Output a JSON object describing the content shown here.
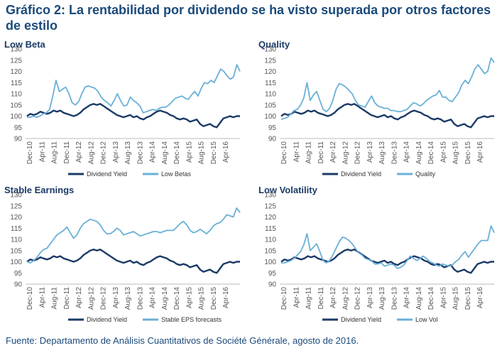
{
  "title": "Gráfico 2: La rentabilidad por dividendo se ha visto superada por otros factores de estilo",
  "footer": "Fuente: Departamento de Análisis Cuantitativos de Société Générale, agosto de 2016.",
  "colors": {
    "dividend": "#1b3a66",
    "factor": "#6ab0d8"
  },
  "chart_data": [
    {
      "type": "line",
      "title": "Low Beta",
      "ylim": [
        90,
        130
      ],
      "yticks": [
        90,
        95,
        100,
        105,
        110,
        115,
        120,
        125,
        130
      ],
      "xticks": [
        "Dec-10",
        "Apr-11",
        "Aug-11",
        "Dec-11",
        "Apr-12",
        "Aug-12",
        "Dec-12",
        "Apr-13",
        "Aug-13",
        "Dec-13",
        "Apr-14",
        "Aug-14",
        "Dec-14",
        "Apr-15",
        "Aug-15",
        "Dec-15",
        "Apr-16"
      ],
      "series": [
        {
          "name": "Dividend Yield",
          "values": [
            100,
            101,
            100.5,
            101,
            102,
            101.5,
            101,
            101.5,
            102.5,
            102,
            102.5,
            101.5,
            101,
            100.5,
            100,
            100.5,
            101.5,
            103,
            104,
            105,
            105.5,
            105,
            105.5,
            104.5,
            103.5,
            102.5,
            101.5,
            100.5,
            100,
            99.5,
            100,
            100.5,
            99.5,
            100,
            99,
            98.5,
            99.5,
            100,
            101,
            102,
            102.5,
            102,
            101.5,
            100.5,
            100,
            99,
            98.5,
            99,
            98.5,
            97.5,
            98,
            98.5,
            96.5,
            95.5,
            96,
            96.5,
            95.5,
            95,
            97,
            99,
            99.5,
            100,
            99.5,
            100,
            100
          ]
        },
        {
          "name": "Low Betas",
          "values": [
            99.5,
            99.5,
            100,
            99.5,
            100,
            101,
            101.5,
            103,
            109,
            116,
            111,
            112,
            113,
            110,
            106,
            105,
            106.5,
            110,
            113,
            113.5,
            113,
            112.5,
            111,
            108.5,
            107,
            106,
            104.5,
            107,
            110,
            107,
            104.5,
            105,
            108.5,
            107,
            106,
            104.5,
            101.5,
            102,
            102.5,
            103,
            102.5,
            103.5,
            104,
            104,
            105,
            106.5,
            108,
            108.5,
            109,
            108,
            107.5,
            109.5,
            111,
            109,
            112.5,
            115,
            114.5,
            116,
            115,
            118,
            121,
            120,
            118,
            116.5,
            117.5,
            123,
            120
          ]
        }
      ]
    },
    {
      "type": "line",
      "title": "Quality",
      "ylim": [
        90,
        130
      ],
      "yticks": [
        90,
        95,
        100,
        105,
        110,
        115,
        120,
        125,
        130
      ],
      "xticks": [
        "Dec-10",
        "Apr-11",
        "Aug-11",
        "Dec-11",
        "Apr-12",
        "Aug-12",
        "Dec-12",
        "Apr-13",
        "Aug-13",
        "Dec-13",
        "Apr-14",
        "Aug-14",
        "Dec-14",
        "Apr-15",
        "Aug-15",
        "Dec-15",
        "Apr-16"
      ],
      "series": [
        {
          "name": "Dividend Yield",
          "values": [
            100,
            101,
            100.5,
            101,
            102,
            101.5,
            101,
            101.5,
            102.5,
            102,
            102.5,
            101.5,
            101,
            100.5,
            100,
            100.5,
            101.5,
            103,
            104,
            105,
            105.5,
            105,
            105.5,
            104.5,
            103.5,
            102.5,
            101.5,
            100.5,
            100,
            99.5,
            100,
            100.5,
            99.5,
            100,
            99,
            98.5,
            99.5,
            100,
            101,
            102,
            102.5,
            102,
            101.5,
            100.5,
            100,
            99,
            98.5,
            99,
            98.5,
            97.5,
            98,
            98.5,
            96.5,
            95.5,
            96,
            96.5,
            95.5,
            95,
            97,
            99,
            99.5,
            100,
            99.5,
            100,
            100
          ]
        },
        {
          "name": "Quality",
          "values": [
            98.5,
            99,
            99.5,
            101,
            102.5,
            103,
            105,
            108,
            115,
            107,
            109.5,
            111,
            107,
            103,
            102,
            103.5,
            107,
            112,
            114.5,
            114,
            113,
            111.5,
            110,
            107,
            105,
            104.5,
            104,
            106.5,
            109,
            106,
            104.5,
            104,
            103.5,
            103.5,
            102.5,
            102.5,
            102,
            102,
            102.5,
            103,
            104.5,
            106,
            105.5,
            104.5,
            105.5,
            107,
            108,
            109,
            109.5,
            111.5,
            108.5,
            108.5,
            107,
            106.5,
            108.5,
            110.5,
            114,
            116,
            114.5,
            117.5,
            121,
            123,
            121,
            119,
            120,
            126,
            124
          ]
        }
      ]
    },
    {
      "type": "line",
      "title": "Stable Earnings",
      "ylim": [
        90,
        130
      ],
      "yticks": [
        90,
        95,
        100,
        105,
        110,
        115,
        120,
        125,
        130
      ],
      "xticks": [
        "Dec-10",
        "Apr-11",
        "Aug-11",
        "Dec-11",
        "Apr-12",
        "Aug-12",
        "Dec-12",
        "Apr-13",
        "Aug-13",
        "Dec-13",
        "Apr-14",
        "Aug-14",
        "Dec-14",
        "Apr-15",
        "Aug-15",
        "Dec-15",
        "Apr-16"
      ],
      "series": [
        {
          "name": "Dividend Yield",
          "values": [
            100,
            101,
            100.5,
            101,
            102,
            101.5,
            101,
            101.5,
            102.5,
            102,
            102.5,
            101.5,
            101,
            100.5,
            100,
            100.5,
            101.5,
            103,
            104,
            105,
            105.5,
            105,
            105.5,
            104.5,
            103.5,
            102.5,
            101.5,
            100.5,
            100,
            99.5,
            100,
            100.5,
            99.5,
            100,
            99,
            98.5,
            99.5,
            100,
            101,
            102,
            102.5,
            102,
            101.5,
            100.5,
            100,
            99,
            98.5,
            99,
            98.5,
            97.5,
            98,
            98.5,
            96.5,
            95.5,
            96,
            96.5,
            95.5,
            95,
            97,
            99,
            99.5,
            100,
            99.5,
            100,
            100
          ]
        },
        {
          "name": "Stable EPS forecasts",
          "values": [
            100,
            99.5,
            100.5,
            102,
            104,
            105.5,
            106,
            108,
            110,
            112,
            113,
            114,
            115.5,
            113,
            110.5,
            112,
            115,
            117,
            118,
            119,
            118.5,
            118,
            116.5,
            114,
            112.5,
            112.5,
            113.5,
            115,
            114,
            112,
            112.5,
            113,
            113.5,
            112.5,
            111.5,
            112,
            112.5,
            113,
            113.5,
            113.5,
            113,
            113.5,
            114,
            114,
            114,
            115.5,
            117,
            118,
            116.5,
            114,
            113,
            113.5,
            114.5,
            113.5,
            112.5,
            114,
            116,
            117,
            117.5,
            119,
            121,
            120.5,
            120,
            124,
            122
          ]
        }
      ]
    },
    {
      "type": "line",
      "title": "Low Volatility",
      "ylim": [
        90,
        130
      ],
      "yticks": [
        90,
        95,
        100,
        105,
        110,
        115,
        120,
        125,
        130
      ],
      "xticks": [
        "Dec-10",
        "Apr-11",
        "Aug-11",
        "Dec-11",
        "Apr-12",
        "Aug-12",
        "Dec-12",
        "Apr-13",
        "Aug-13",
        "Dec-13",
        "Apr-14",
        "Aug-14",
        "Dec-14",
        "Apr-15",
        "Aug-15",
        "Dec-15",
        "Apr-16"
      ],
      "series": [
        {
          "name": "Dividend Yield",
          "values": [
            100,
            101,
            100.5,
            101,
            102,
            101.5,
            101,
            101.5,
            102.5,
            102,
            102.5,
            101.5,
            101,
            100.5,
            100,
            100.5,
            101.5,
            103,
            104,
            105,
            105.5,
            105,
            105.5,
            104.5,
            103.5,
            102.5,
            101.5,
            100.5,
            100,
            99.5,
            100,
            100.5,
            99.5,
            100,
            99,
            98.5,
            99.5,
            100,
            101,
            102,
            102.5,
            102,
            101.5,
            100.5,
            100,
            99,
            98.5,
            99,
            98.5,
            97.5,
            98,
            98.5,
            96.5,
            95.5,
            96,
            96.5,
            95.5,
            95,
            97,
            99,
            99.5,
            100,
            99.5,
            100,
            100
          ]
        },
        {
          "name": "Low Vol",
          "values": [
            99.5,
            99.5,
            100,
            100.5,
            101.5,
            103,
            104.5,
            107.5,
            112.5,
            105,
            106.5,
            108,
            104.5,
            100.5,
            99.5,
            100.5,
            103,
            106,
            109,
            111,
            110.5,
            109.5,
            108,
            106,
            104,
            103,
            101.5,
            101,
            100.5,
            99,
            99,
            99.5,
            98,
            98.5,
            99,
            98.5,
            97,
            97.5,
            98.5,
            100.5,
            102.5,
            101.5,
            100.5,
            101.5,
            102.5,
            101.5,
            100,
            99.5,
            98.5,
            98,
            99,
            98.5,
            98,
            98.5,
            100,
            101,
            103,
            104.5,
            102,
            104,
            106,
            108,
            109.5,
            109.5,
            109.5,
            116,
            113
          ]
        }
      ]
    }
  ]
}
